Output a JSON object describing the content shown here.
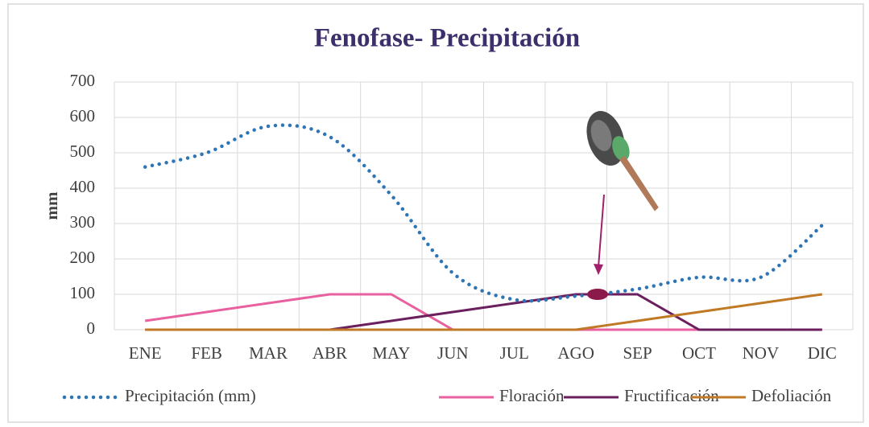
{
  "chart_data": {
    "type": "line",
    "title": "Fenofase- Precipitación",
    "y_label": "mm",
    "categories": [
      "ENE",
      "FEB",
      "MAR",
      "ABR",
      "MAY",
      "JUN",
      "JUL",
      "AGO",
      "SEP",
      "OCT",
      "NOV",
      "DIC"
    ],
    "series": [
      {
        "name": "Precipitación (mm)",
        "color": "#2e75b6",
        "dotted": true,
        "values": [
          460,
          500,
          575,
          545,
          380,
          160,
          85,
          95,
          115,
          148,
          148,
          295
        ]
      },
      {
        "name": "Floración",
        "color": "#e8609f",
        "values": [
          25,
          50,
          75,
          100,
          100,
          0,
          0,
          0,
          0,
          0,
          0,
          0
        ]
      },
      {
        "name": "Fructificación",
        "color": "#6b1f5e",
        "values": [
          0,
          0,
          0,
          0,
          25,
          50,
          75,
          100,
          100,
          0,
          0,
          0
        ]
      },
      {
        "name": "Defoliación",
        "color": "#c07a26",
        "values": [
          0,
          0,
          0,
          0,
          0,
          0,
          0,
          0,
          25,
          50,
          75,
          100
        ]
      }
    ],
    "ylim": [
      0,
      700
    ],
    "yticks": [
      0,
      100,
      200,
      300,
      400,
      500,
      600,
      700
    ],
    "grid": true,
    "legend": "bottom"
  }
}
